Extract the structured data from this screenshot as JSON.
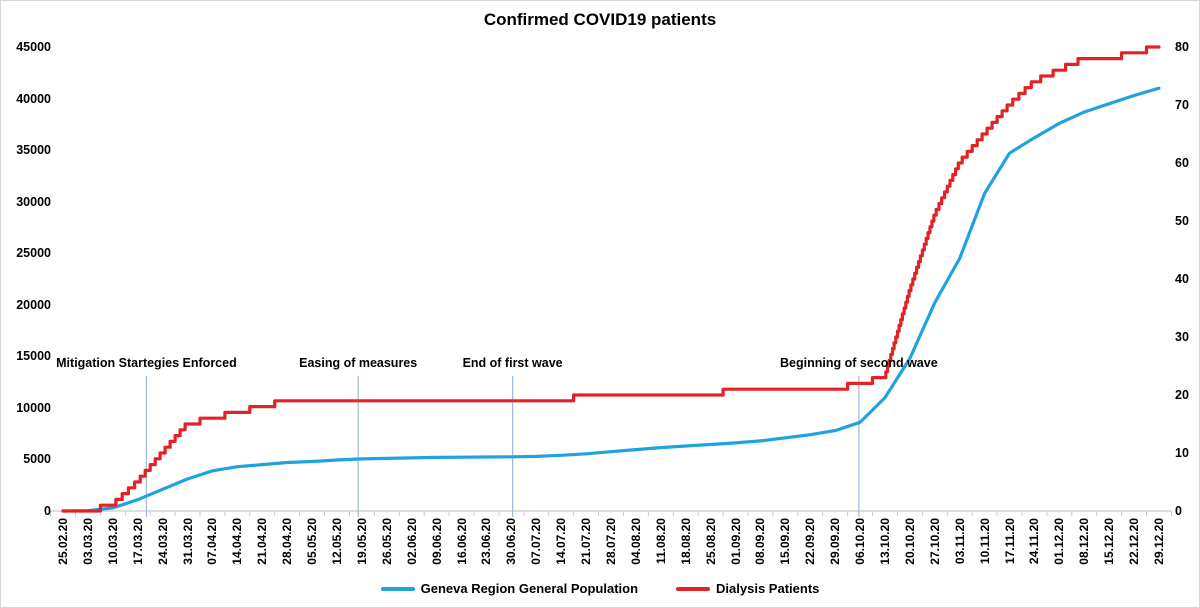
{
  "title": "Confirmed COVID19 patients",
  "colors": {
    "population_line": "#1fa3df",
    "dialysis_line": "#e32227",
    "annotation_line": "#9db9dc",
    "axis_line": "#c9c9c9",
    "text": "#000000"
  },
  "left_axis": {
    "min": 0,
    "max": 45000,
    "tick_labels": [
      "45000",
      "40000",
      "35000",
      "30000",
      "25000",
      "20000",
      "15000",
      "10000",
      "5000",
      "0"
    ]
  },
  "right_axis": {
    "min": 0,
    "max": 80,
    "tick_labels": [
      "80",
      "70",
      "60",
      "50",
      "40",
      "30",
      "20",
      "10",
      "0"
    ]
  },
  "annotations": [
    {
      "label": "Mitigation Startegies Enforced",
      "x_index": 3.35
    },
    {
      "label": "Easing of measures",
      "x_index": 11.85
    },
    {
      "label": "End of first wave",
      "x_index": 18.05
    },
    {
      "label": "Beginning of second wave",
      "x_index": 31.95
    }
  ],
  "legend": [
    {
      "label": "Geneva Region General Population",
      "color_key": "population_line"
    },
    {
      "label": "Dialysis Patients",
      "color_key": "dialysis_line"
    }
  ],
  "chart_data": {
    "type": "line",
    "title": "Confirmed COVID19 patients",
    "x_tick_labels": [
      "25.02.20",
      "03.03.20",
      "10.03.20",
      "17.03.20",
      "24.03.20",
      "31.03.20",
      "07.04.20",
      "14.04.20",
      "21.04.20",
      "28.04.20",
      "05.05.20",
      "12.05.20",
      "19.05.20",
      "26.05.20",
      "02.06.20",
      "09.06.20",
      "16.06.20",
      "23.06.20",
      "30.06.20",
      "07.07.20",
      "14.07.20",
      "21.07.20",
      "28.07.20",
      "04.08.20",
      "11.08.20",
      "18.08.20",
      "25.08.20",
      "01.09.20",
      "08.09.20",
      "15.09.20",
      "22.09.20",
      "29.09.20",
      "06.10.20",
      "13.10.20",
      "20.10.20",
      "27.10.20",
      "03.11.20",
      "10.11.20",
      "17.11.20",
      "24.11.20",
      "01.12.20",
      "08.12.20",
      "15.12.20",
      "22.12.20",
      "29.12.20"
    ],
    "grid": false,
    "legend_position": "bottom",
    "left_ylim": [
      0,
      45000
    ],
    "right_ylim": [
      0,
      80
    ],
    "series": [
      {
        "name": "Geneva Region General Population",
        "axis": "left",
        "style": "smooth",
        "values": [
          0,
          30,
          300,
          1100,
          2100,
          3100,
          3900,
          4300,
          4500,
          4700,
          4800,
          4950,
          5050,
          5100,
          5150,
          5200,
          5220,
          5240,
          5260,
          5300,
          5400,
          5550,
          5750,
          5950,
          6150,
          6300,
          6450,
          6600,
          6800,
          7100,
          7400,
          7800,
          8600,
          11000,
          14800,
          20200,
          24500,
          30800,
          34700,
          36200,
          37600,
          38700,
          39500,
          40300,
          41000
        ]
      },
      {
        "name": "Dialysis Patients",
        "axis": "right",
        "style": "staircase",
        "values": [
          0,
          0,
          1,
          5,
          10,
          15,
          16,
          17,
          18,
          19,
          19,
          19,
          19,
          19,
          19,
          19,
          19,
          19,
          19,
          19,
          19,
          20,
          20,
          20,
          20,
          20,
          20,
          21,
          21,
          21,
          21,
          21,
          22,
          23,
          38,
          51,
          60,
          65,
          70,
          74,
          76,
          78,
          78,
          79,
          80
        ]
      }
    ]
  }
}
